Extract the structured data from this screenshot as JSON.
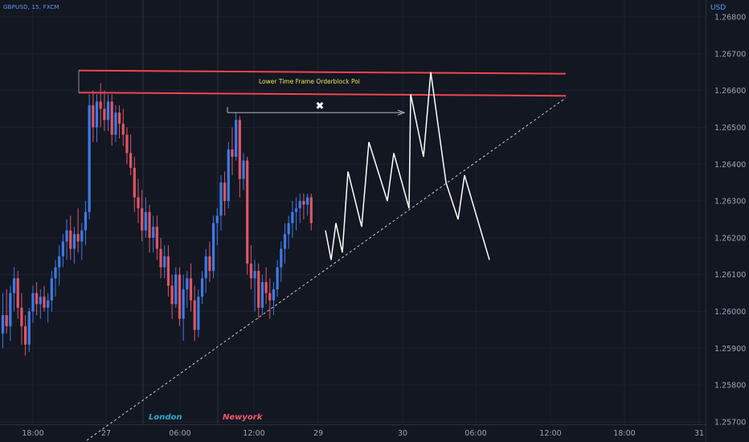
{
  "header": {
    "symbol": "GBPUSD, 15, FXCM",
    "currency": "USD"
  },
  "colors": {
    "background": "#131722",
    "grid": "#1e2230",
    "axis_text": "#9aa4b5",
    "bull": "#3d7be6",
    "bear": "#e05566",
    "zone": "#f0454f",
    "projection": "#ffffff",
    "trend": "#c9ccd4",
    "annotation_text": "#f5e35c"
  },
  "sessions": {
    "london": "London",
    "newyork": "Newyork"
  },
  "annotations": {
    "zone_label": "Lower Time Frame Orderblock Poi",
    "x_mark": "✖"
  },
  "chart_data": {
    "type": "candlestick",
    "symbol": "GBPUSD",
    "timeframe": "15",
    "price_axis": {
      "range": [
        1.2567,
        1.2692
      ],
      "ticks": [
        "1.26800",
        "1.26700",
        "1.26600",
        "1.26500",
        "1.26400",
        "1.26300",
        "1.26200",
        "1.26100",
        "1.26000",
        "1.25900",
        "1.25800",
        "1.25700"
      ]
    },
    "time_axis": {
      "ticks": [
        "18:00",
        "27",
        "06:00",
        "12:00",
        "29",
        "30",
        "06:00",
        "12:00",
        "18:00",
        "31"
      ]
    },
    "candles_ohlc": [
      [
        1.2594,
        1.2605,
        1.259,
        1.2599
      ],
      [
        1.2599,
        1.2606,
        1.2594,
        1.2596
      ],
      [
        1.2596,
        1.2607,
        1.2592,
        1.2605
      ],
      [
        1.2605,
        1.2612,
        1.26,
        1.2609
      ],
      [
        1.2609,
        1.2611,
        1.2598,
        1.2601
      ],
      [
        1.2601,
        1.2605,
        1.2591,
        1.2596
      ],
      [
        1.2596,
        1.2599,
        1.2588,
        1.2591
      ],
      [
        1.2591,
        1.2601,
        1.2589,
        1.26
      ],
      [
        1.26,
        1.2607,
        1.2597,
        1.2605
      ],
      [
        1.2605,
        1.2608,
        1.2599,
        1.2602
      ],
      [
        1.2602,
        1.2606,
        1.2598,
        1.2604
      ],
      [
        1.2604,
        1.2607,
        1.26,
        1.2601
      ],
      [
        1.2601,
        1.2605,
        1.2597,
        1.2603
      ],
      [
        1.2603,
        1.2611,
        1.26,
        1.2609
      ],
      [
        1.2609,
        1.2614,
        1.2604,
        1.2612
      ],
      [
        1.2612,
        1.2618,
        1.2607,
        1.2615
      ],
      [
        1.2615,
        1.2621,
        1.2612,
        1.2619
      ],
      [
        1.2619,
        1.2625,
        1.2614,
        1.2622
      ],
      [
        1.2622,
        1.2626,
        1.2614,
        1.2617
      ],
      [
        1.2617,
        1.2623,
        1.2613,
        1.2621
      ],
      [
        1.2621,
        1.2628,
        1.2616,
        1.2619
      ],
      [
        1.2619,
        1.2624,
        1.2614,
        1.2622
      ],
      [
        1.2622,
        1.263,
        1.2618,
        1.2627
      ],
      [
        1.2627,
        1.2659,
        1.2625,
        1.2656
      ],
      [
        1.2656,
        1.266,
        1.2646,
        1.265
      ],
      [
        1.265,
        1.2659,
        1.2646,
        1.2657
      ],
      [
        1.2657,
        1.2662,
        1.265,
        1.2655
      ],
      [
        1.2655,
        1.266,
        1.2649,
        1.2652
      ],
      [
        1.2652,
        1.2659,
        1.2649,
        1.2657
      ],
      [
        1.2657,
        1.2659,
        1.2645,
        1.2648
      ],
      [
        1.2648,
        1.2656,
        1.2646,
        1.2654
      ],
      [
        1.2654,
        1.2656,
        1.2647,
        1.2651
      ],
      [
        1.2651,
        1.2655,
        1.2645,
        1.2648
      ],
      [
        1.2648,
        1.265,
        1.264,
        1.2643
      ],
      [
        1.2643,
        1.2648,
        1.2637,
        1.2639
      ],
      [
        1.2639,
        1.2642,
        1.2627,
        1.2631
      ],
      [
        1.2631,
        1.2636,
        1.2624,
        1.2628
      ],
      [
        1.2628,
        1.2633,
        1.2619,
        1.2622
      ],
      [
        1.2622,
        1.2631,
        1.262,
        1.2627
      ],
      [
        1.2627,
        1.2629,
        1.2616,
        1.262
      ],
      [
        1.262,
        1.2626,
        1.2616,
        1.2623
      ],
      [
        1.2623,
        1.2626,
        1.2614,
        1.2617
      ],
      [
        1.2617,
        1.262,
        1.2609,
        1.2612
      ],
      [
        1.2612,
        1.2618,
        1.2609,
        1.2615
      ],
      [
        1.2615,
        1.2618,
        1.2604,
        1.2607
      ],
      [
        1.2607,
        1.261,
        1.2598,
        1.2602
      ],
      [
        1.2602,
        1.2612,
        1.2601,
        1.261
      ],
      [
        1.261,
        1.2612,
        1.2596,
        1.2598
      ],
      [
        1.2598,
        1.261,
        1.2592,
        1.2606
      ],
      [
        1.2606,
        1.2611,
        1.2601,
        1.2609
      ],
      [
        1.2609,
        1.2613,
        1.26,
        1.2603
      ],
      [
        1.2603,
        1.2607,
        1.2592,
        1.2595
      ],
      [
        1.2595,
        1.2606,
        1.2593,
        1.2604
      ],
      [
        1.2604,
        1.2611,
        1.2602,
        1.2609
      ],
      [
        1.2609,
        1.2617,
        1.2605,
        1.2615
      ],
      [
        1.2615,
        1.2619,
        1.2608,
        1.2611
      ],
      [
        1.2611,
        1.2626,
        1.2609,
        1.2624
      ],
      [
        1.2624,
        1.2628,
        1.2618,
        1.2626
      ],
      [
        1.2626,
        1.2637,
        1.2622,
        1.2635
      ],
      [
        1.2635,
        1.2638,
        1.2626,
        1.263
      ],
      [
        1.263,
        1.2646,
        1.2628,
        1.2644
      ],
      [
        1.2644,
        1.265,
        1.2637,
        1.2642
      ],
      [
        1.2642,
        1.2654,
        1.2641,
        1.2652
      ],
      [
        1.2652,
        1.2653,
        1.2631,
        1.2636
      ],
      [
        1.2636,
        1.2643,
        1.2633,
        1.2641
      ],
      [
        1.2641,
        1.2642,
        1.261,
        1.2613
      ],
      [
        1.2613,
        1.2618,
        1.2606,
        1.2609
      ],
      [
        1.2609,
        1.2614,
        1.26,
        1.2611
      ],
      [
        1.2611,
        1.2613,
        1.2598,
        1.2601
      ],
      [
        1.2601,
        1.261,
        1.2599,
        1.2608
      ],
      [
        1.2608,
        1.2612,
        1.2602,
        1.2605
      ],
      [
        1.2605,
        1.2609,
        1.2598,
        1.2603
      ],
      [
        1.2603,
        1.2608,
        1.2599,
        1.2606
      ],
      [
        1.2606,
        1.2614,
        1.2604,
        1.2612
      ],
      [
        1.2612,
        1.2619,
        1.2608,
        1.2617
      ],
      [
        1.2617,
        1.2624,
        1.2613,
        1.2621
      ],
      [
        1.2621,
        1.2626,
        1.2617,
        1.2624
      ],
      [
        1.2624,
        1.263,
        1.262,
        1.2627
      ],
      [
        1.2627,
        1.2631,
        1.2622,
        1.2628
      ],
      [
        1.2628,
        1.2632,
        1.2624,
        1.263
      ],
      [
        1.263,
        1.2632,
        1.2625,
        1.2629
      ],
      [
        1.2629,
        1.2632,
        1.2626,
        1.2631
      ],
      [
        1.2631,
        1.2632,
        1.2622,
        1.2624
      ]
    ],
    "levels": {
      "orderblock_top": 1.2665,
      "orderblock_bottom": 1.2659
    },
    "trendline": {
      "from": 1.2565,
      "to": 1.2658
    },
    "arrow_level": 1.2654,
    "projection_path": [
      1.2622,
      1.2614,
      1.2624,
      1.2616,
      1.2638,
      1.2623,
      1.2646,
      1.263,
      1.2643,
      1.2628,
      1.2659,
      1.2642,
      1.2665,
      1.2635,
      1.2625,
      1.2637,
      1.2614
    ]
  }
}
